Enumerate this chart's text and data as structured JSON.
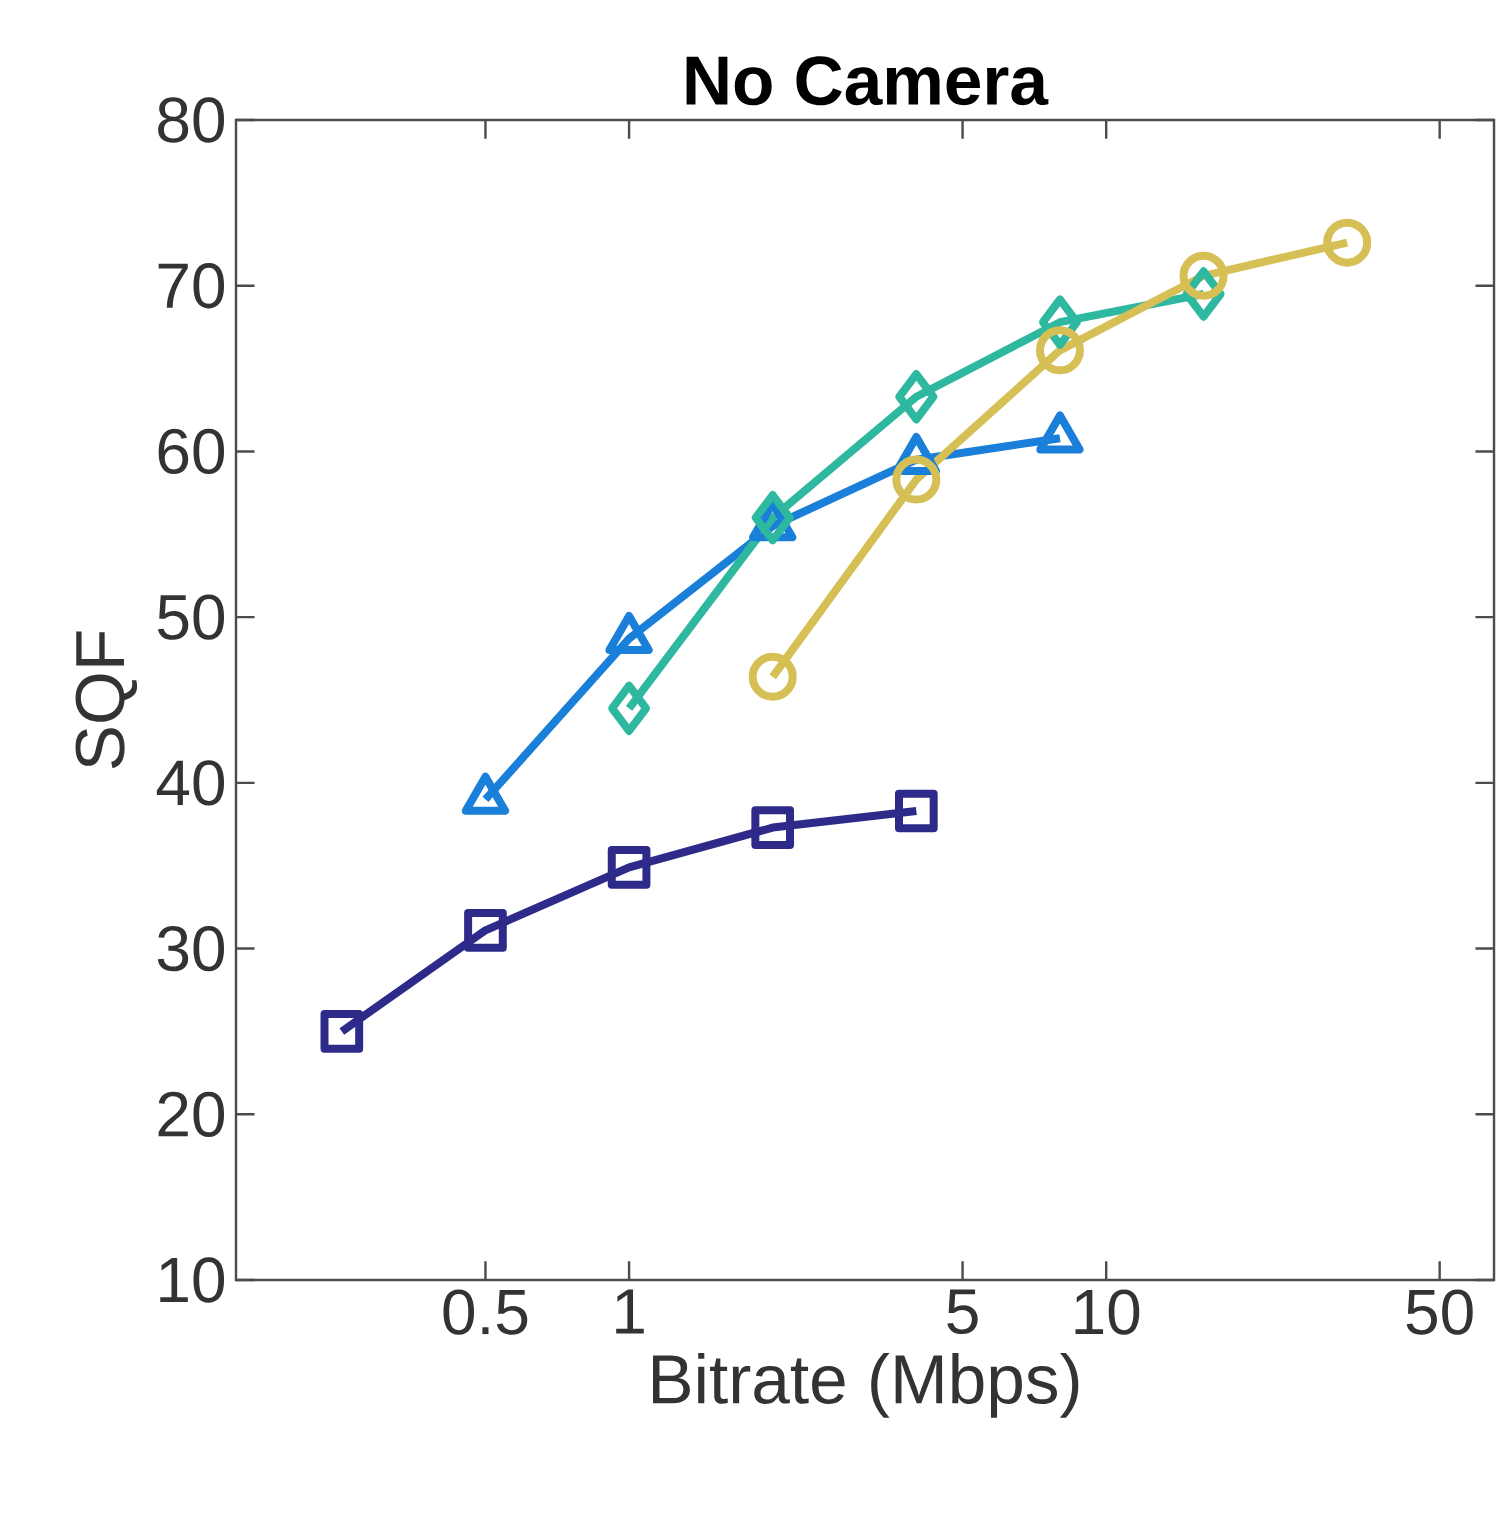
{
  "chart_data": {
    "type": "line",
    "title": "No Camera",
    "xlabel": "Bitrate (Mbps)",
    "ylabel": "SQF",
    "log": "x",
    "xlim": [
      0.15,
      65
    ],
    "ylim": [
      10,
      80
    ],
    "xticks": [
      0.5,
      1,
      5,
      10,
      50
    ],
    "yticks": [
      10,
      20,
      30,
      40,
      50,
      60,
      70,
      80
    ],
    "series": [
      {
        "color": "#2e2a8a",
        "marker": "square",
        "x": [
          0.25,
          0.5,
          1,
          2,
          4
        ],
        "values": [
          25,
          31.1,
          34.9,
          37.3,
          38.3
        ]
      },
      {
        "color": "#1a7fd8",
        "marker": "triangle",
        "x": [
          0.5,
          1,
          2,
          4,
          8
        ],
        "values": [
          39,
          48.7,
          55.5,
          59.5,
          60.8
        ]
      },
      {
        "color": "#2fb8a0",
        "marker": "diamond",
        "x": [
          1,
          2,
          4,
          8,
          16
        ],
        "values": [
          44.5,
          56,
          63.3,
          67.8,
          69.5
        ]
      },
      {
        "color": "#d6bf55",
        "marker": "circle",
        "x": [
          2,
          4,
          8,
          16,
          32
        ],
        "values": [
          46.4,
          58.3,
          66.1,
          70.6,
          72.6
        ]
      }
    ]
  }
}
